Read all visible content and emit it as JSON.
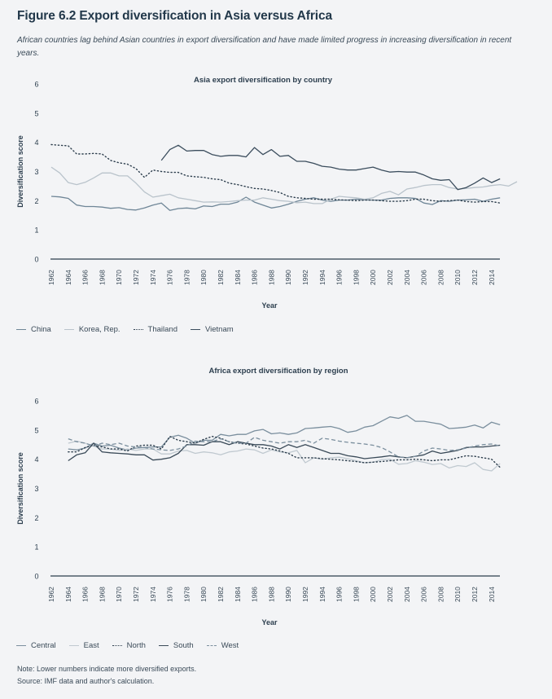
{
  "figure": {
    "title": "Figure 6.2 Export diversification in Asia versus Africa",
    "subtitle": "African countries lag behind Asian countries in export diversification and have made limited progress in increasing diversification in recent years."
  },
  "footer": {
    "note": "Note: Lower numbers indicate more diversified exports.",
    "source": "Source: IMF data and author's calculation."
  },
  "chart_data": [
    {
      "type": "line",
      "title": "Asia export diversification by country",
      "xlabel": "Year",
      "ylabel": "Diversification score",
      "ylim": [
        0,
        6
      ],
      "yticks": [
        "0",
        "1",
        "2",
        "3",
        "4",
        "5",
        "6"
      ],
      "xticks": [
        "1962",
        "1964",
        "1966",
        "1968",
        "1970",
        "1972",
        "1974",
        "1976",
        "1978",
        "1980",
        "1982",
        "1984",
        "1986",
        "1988",
        "1990",
        "1992",
        "1994",
        "1996",
        "1998",
        "2000",
        "2002",
        "2004",
        "2006",
        "2008",
        "2010",
        "2012",
        "2014"
      ],
      "xlim": [
        1962,
        2015
      ],
      "grid": false,
      "legend": "bottom-left",
      "series": [
        {
          "name": "China",
          "style": "solid",
          "color": "#6f8697",
          "start": 1962,
          "values": [
            2.15,
            2.13,
            2.08,
            1.85,
            1.8,
            1.8,
            1.78,
            1.74,
            1.76,
            1.7,
            1.68,
            1.75,
            1.85,
            1.92,
            1.67,
            1.73,
            1.75,
            1.72,
            1.82,
            1.8,
            1.88,
            1.88,
            1.95,
            2.12,
            1.95,
            1.85,
            1.75,
            1.8,
            1.88,
            1.98,
            2.05,
            2.1,
            2.02,
            1.98,
            2.02,
            2.02,
            2.05,
            2.03,
            2.02,
            2.02,
            2.08,
            2.1,
            2.1,
            2.08,
            1.92,
            1.87,
            2.0,
            1.98,
            2.02,
            2.03,
            2.05,
            1.98,
            2.05,
            2.1
          ]
        },
        {
          "name": "Korea, Rep.",
          "style": "solid",
          "color": "#b9c3cb",
          "start": 1962,
          "values": [
            3.15,
            2.95,
            2.62,
            2.55,
            2.63,
            2.78,
            2.95,
            2.95,
            2.85,
            2.85,
            2.6,
            2.3,
            2.12,
            2.17,
            2.22,
            2.1,
            2.05,
            2.0,
            1.95,
            1.96,
            1.95,
            1.97,
            2.0,
            2.02,
            2.02,
            2.1,
            2.05,
            2.0,
            1.98,
            1.93,
            1.95,
            1.9,
            1.9,
            2.05,
            2.15,
            2.12,
            2.1,
            2.05,
            2.1,
            2.25,
            2.32,
            2.2,
            2.4,
            2.45,
            2.52,
            2.55,
            2.55,
            2.45,
            2.4,
            2.42,
            2.45,
            2.47,
            2.52,
            2.55,
            2.5,
            2.65
          ]
        },
        {
          "name": "Thailand",
          "style": "dotted",
          "color": "#2d3e4d",
          "start": 1962,
          "values": [
            3.92,
            3.9,
            3.88,
            3.6,
            3.6,
            3.62,
            3.6,
            3.38,
            3.3,
            3.25,
            3.1,
            2.8,
            3.05,
            3.0,
            2.97,
            2.97,
            2.85,
            2.82,
            2.8,
            2.75,
            2.72,
            2.6,
            2.55,
            2.48,
            2.42,
            2.4,
            2.35,
            2.28,
            2.15,
            2.1,
            2.08,
            2.05,
            2.05,
            2.05,
            2.03,
            2.02,
            2.0,
            2.02,
            2.02,
            2.0,
            1.98,
            1.98,
            2.0,
            2.05,
            2.05,
            2.0,
            1.98,
            2.0,
            2.02,
            1.97,
            1.95,
            1.97,
            1.97,
            1.92
          ]
        },
        {
          "name": "Vietnam",
          "style": "solid",
          "color": "#3b4d5d",
          "start": 1975,
          "values": [
            3.38,
            3.75,
            3.9,
            3.7,
            3.72,
            3.72,
            3.58,
            3.52,
            3.55,
            3.55,
            3.5,
            3.82,
            3.58,
            3.75,
            3.52,
            3.55,
            3.35,
            3.35,
            3.28,
            3.18,
            3.15,
            3.08,
            3.05,
            3.05,
            3.1,
            3.15,
            3.05,
            2.98,
            3.0,
            2.98,
            2.98,
            2.88,
            2.75,
            2.7,
            2.72,
            2.38,
            2.45,
            2.6,
            2.78,
            2.62,
            2.75
          ]
        }
      ]
    },
    {
      "type": "line",
      "title": "Africa export diversification by region",
      "xlabel": "Year",
      "ylabel": "Diversification score",
      "ylim": [
        0,
        6
      ],
      "yticks": [
        "0",
        "1",
        "2",
        "3",
        "4",
        "5",
        "6"
      ],
      "xticks": [
        "1962",
        "1964",
        "1966",
        "1968",
        "1970",
        "1972",
        "1974",
        "1976",
        "1978",
        "1980",
        "1982",
        "1984",
        "1986",
        "1988",
        "1990",
        "1992",
        "1994",
        "1996",
        "1998",
        "2000",
        "2002",
        "2004",
        "2006",
        "2008",
        "2010",
        "2012",
        "2014"
      ],
      "xlim": [
        1962,
        2015
      ],
      "grid": false,
      "legend": "bottom-left",
      "series": [
        {
          "name": "Central",
          "style": "solid",
          "color": "#7b8f9e",
          "start": 1964,
          "values": [
            4.35,
            4.32,
            4.38,
            4.55,
            4.45,
            4.48,
            4.38,
            4.32,
            4.38,
            4.4,
            4.42,
            4.42,
            4.75,
            4.82,
            4.72,
            4.55,
            4.65,
            4.65,
            4.85,
            4.8,
            4.85,
            4.85,
            4.97,
            5.02,
            4.87,
            4.9,
            4.85,
            4.9,
            5.05,
            5.07,
            5.1,
            5.12,
            5.05,
            4.92,
            4.97,
            5.1,
            5.15,
            5.3,
            5.45,
            5.4,
            5.5,
            5.3,
            5.3,
            5.25,
            5.2,
            5.05,
            5.07,
            5.1,
            5.17,
            5.07,
            5.27,
            5.18
          ]
        },
        {
          "name": "East",
          "style": "solid",
          "color": "#c0c9d0",
          "start": 1964,
          "values": [
            4.55,
            4.62,
            4.55,
            4.45,
            4.35,
            4.35,
            4.3,
            4.35,
            4.3,
            4.35,
            4.35,
            4.18,
            4.18,
            4.28,
            4.3,
            4.2,
            4.25,
            4.22,
            4.15,
            4.25,
            4.28,
            4.35,
            4.32,
            4.2,
            4.32,
            4.25,
            4.22,
            4.3,
            3.88,
            4.05,
            4.0,
            4.05,
            4.07,
            4.02,
            3.95,
            3.88,
            3.9,
            3.98,
            4.0,
            3.83,
            3.85,
            3.95,
            3.9,
            3.82,
            3.85,
            3.7,
            3.78,
            3.75,
            3.88,
            3.65,
            3.6,
            3.85
          ]
        },
        {
          "name": "North",
          "style": "dotted",
          "color": "#2d3e4d",
          "start": 1964,
          "values": [
            4.25,
            4.25,
            4.4,
            4.48,
            4.42,
            4.35,
            4.35,
            4.28,
            4.45,
            4.48,
            4.48,
            4.35,
            4.78,
            4.65,
            4.6,
            4.55,
            4.68,
            4.78,
            4.72,
            4.6,
            4.55,
            4.52,
            4.45,
            4.38,
            4.35,
            4.28,
            4.2,
            4.05,
            4.05,
            4.05,
            4.02,
            4.0,
            3.98,
            3.95,
            3.92,
            3.88,
            3.9,
            3.92,
            3.95,
            3.98,
            3.98,
            4.0,
            3.98,
            3.95,
            3.98,
            3.98,
            4.05,
            4.12,
            4.1,
            4.05,
            4.0,
            3.72
          ]
        },
        {
          "name": "South",
          "style": "solid",
          "color": "#3a4a58",
          "start": 1964,
          "values": [
            3.95,
            4.15,
            4.22,
            4.55,
            4.25,
            4.22,
            4.2,
            4.18,
            4.15,
            4.15,
            3.97,
            4.0,
            4.05,
            4.2,
            4.5,
            4.5,
            4.48,
            4.6,
            4.6,
            4.5,
            4.6,
            4.55,
            4.5,
            4.5,
            4.45,
            4.35,
            4.5,
            4.4,
            4.5,
            4.4,
            4.3,
            4.2,
            4.2,
            4.12,
            4.08,
            4.02,
            4.05,
            4.08,
            4.12,
            4.08,
            4.05,
            4.1,
            4.15,
            4.28,
            4.2,
            4.25,
            4.3,
            4.4,
            4.42,
            4.42,
            4.45,
            4.48
          ]
        },
        {
          "name": "West",
          "style": "dashed",
          "color": "#7b8f9e",
          "start": 1964,
          "values": [
            4.7,
            4.6,
            4.55,
            4.45,
            4.55,
            4.5,
            4.55,
            4.45,
            4.42,
            4.4,
            4.35,
            4.32,
            4.3,
            4.35,
            4.45,
            4.62,
            4.6,
            4.6,
            4.7,
            4.6,
            4.55,
            4.55,
            4.75,
            4.65,
            4.6,
            4.55,
            4.6,
            4.6,
            4.65,
            4.55,
            4.72,
            4.68,
            4.62,
            4.58,
            4.55,
            4.52,
            4.48,
            4.4,
            4.25,
            4.08,
            4.05,
            4.1,
            4.28,
            4.38,
            4.35,
            4.3,
            4.32,
            4.38,
            4.45,
            4.5,
            4.52,
            4.45
          ]
        }
      ]
    }
  ]
}
